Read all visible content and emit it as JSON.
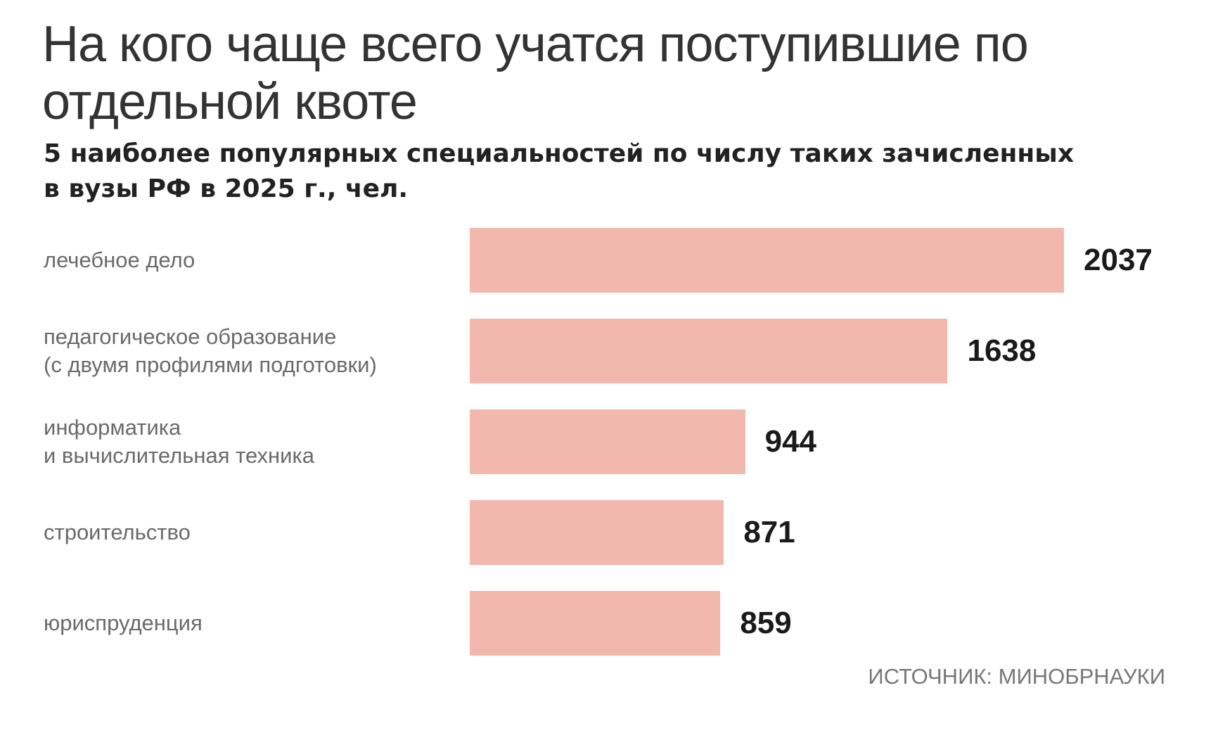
{
  "chart_data": {
    "type": "bar",
    "orientation": "horizontal",
    "title": "На кого чаще всего учатся поступившие по отдельной квоте",
    "subtitle": "5 наиболее популярных специальностей по числу таких зачисленных в вузы РФ в 2025 г., чел.",
    "categories": [
      "лечебное дело",
      "педагогическое образование\n(с двумя профилями подготовки)",
      "информатика\nи вычислительная техника",
      "строительство",
      "юриспруденция"
    ],
    "values": [
      2037,
      1638,
      944,
      871,
      859
    ],
    "bar_color": "#f2b8ad",
    "grid": false,
    "source": "ИСТОЧНИК: МИНОБРНАУКИ"
  }
}
